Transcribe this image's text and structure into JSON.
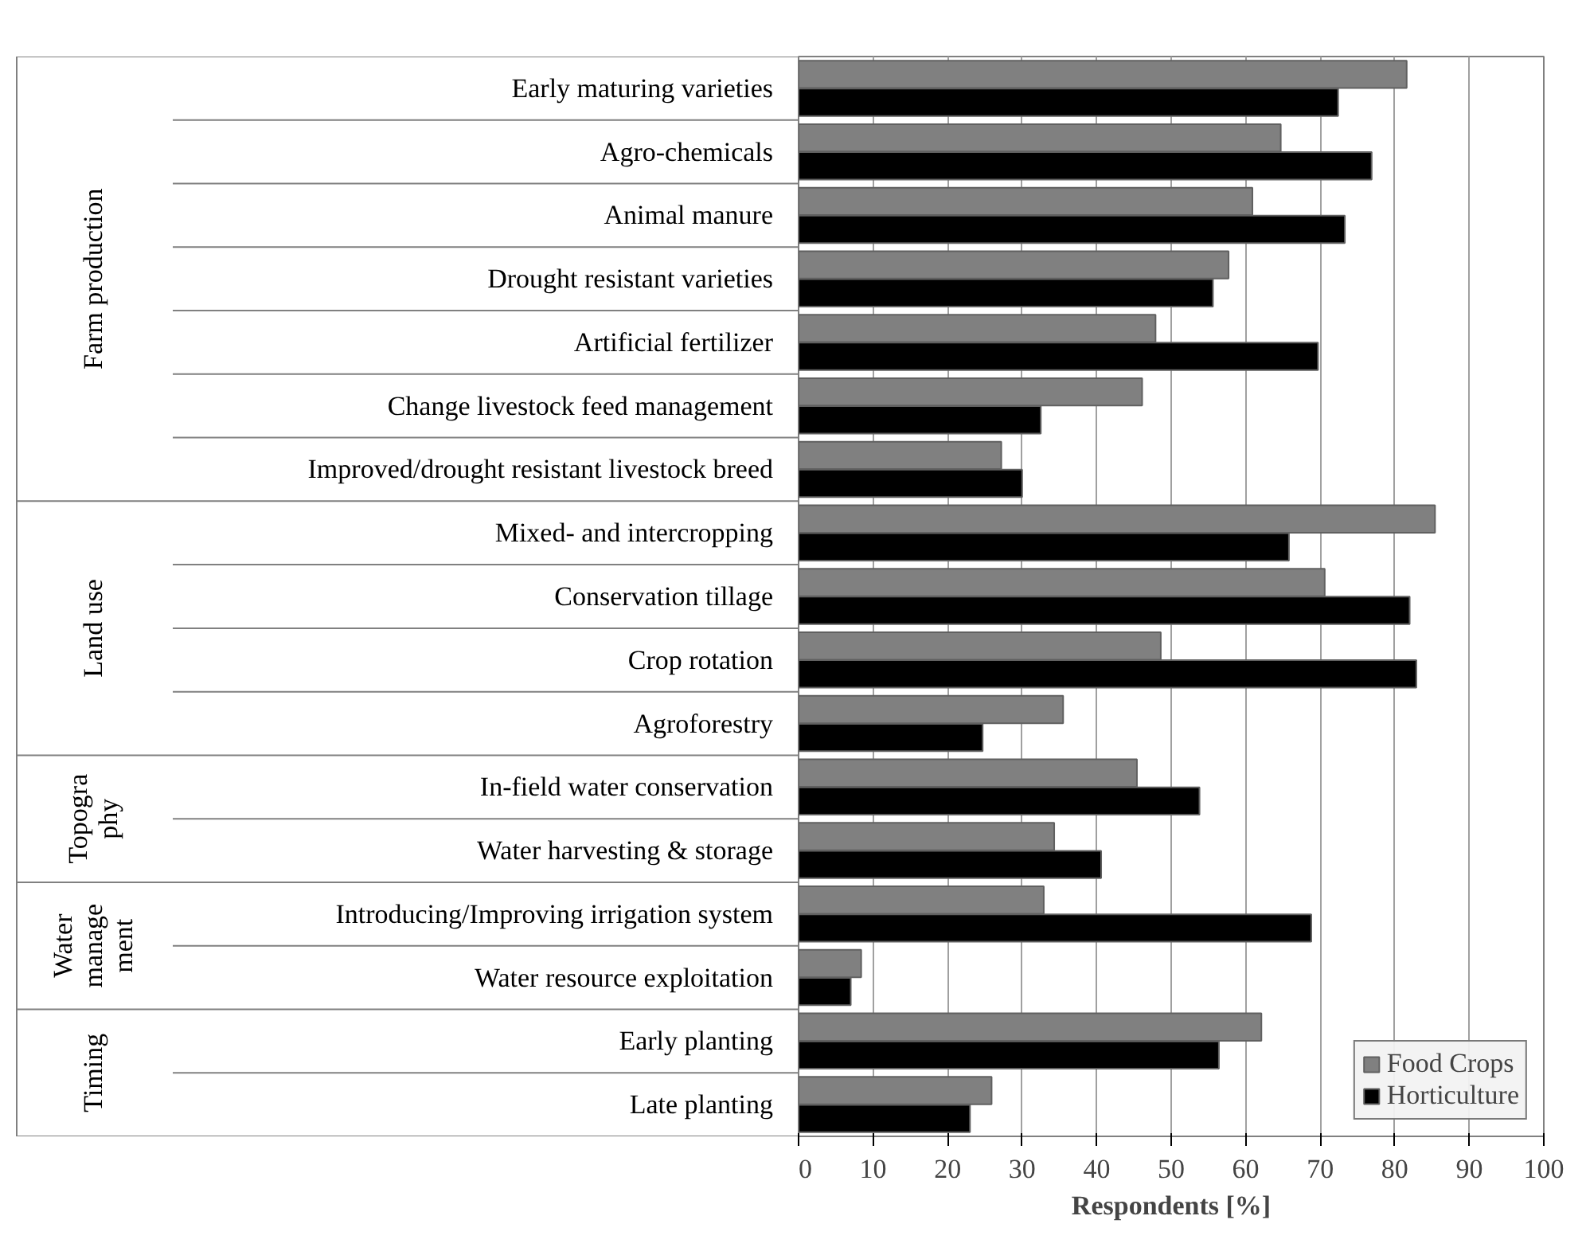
{
  "chart_data": {
    "type": "bar",
    "orientation": "horizontal",
    "xlabel": "Respondents [%]",
    "categories": [
      "Early maturing varieties",
      "Agro-chemicals",
      "Animal manure",
      "Drought resistant varieties",
      "Artificial fertilizer",
      "Change livestock feed management",
      "Improved/drought resistant livestock breed",
      "Mixed- and intercropping",
      "Conservation tillage",
      "Crop rotation",
      "Agroforestry",
      "In-field water conservation",
      "Water harvesting & storage",
      "Introducing/Improving irrigation system",
      "Water resource exploitation",
      "Early planting",
      "Late planting"
    ],
    "series": [
      {
        "name": "Food Crops",
        "color": "#808080",
        "values": [
          81.6,
          64.7,
          60.9,
          57.7,
          47.9,
          46.1,
          27.2,
          85.4,
          70.6,
          48.6,
          35.5,
          45.4,
          34.3,
          32.9,
          8.4,
          62.1,
          25.9
        ]
      },
      {
        "name": "Horticulture",
        "color": "#000000",
        "values": [
          72.4,
          76.9,
          73.3,
          55.6,
          69.7,
          32.5,
          30.0,
          65.8,
          82.0,
          82.9,
          24.7,
          53.8,
          40.6,
          68.8,
          7.0,
          56.4,
          23.0
        ]
      }
    ],
    "xlim": [
      0,
      100
    ],
    "xticks": [
      0,
      10,
      20,
      30,
      40,
      50,
      60,
      70,
      80,
      90,
      100
    ],
    "grid": "x",
    "legend": "bottom right",
    "annotations": [
      "Farm production",
      "Land use",
      "Topogra\nphy",
      "Water\nmanage\nment",
      "Timing"
    ]
  }
}
